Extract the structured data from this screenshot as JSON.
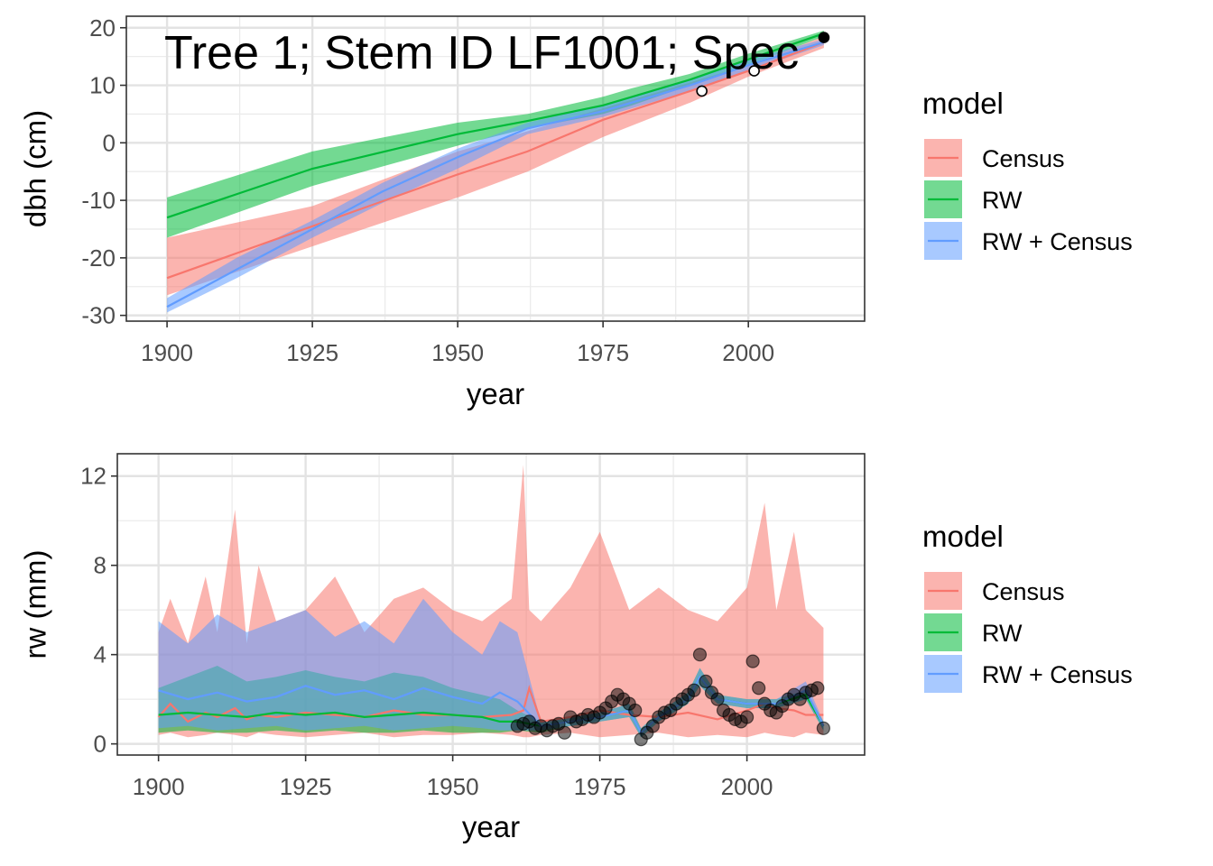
{
  "chart_data": [
    {
      "type": "line",
      "title": "Tree 1; Stem ID LF1001; Spec",
      "xlabel": "year",
      "ylabel": "dbh (cm)",
      "xlim": [
        1893,
        2020
      ],
      "ylim": [
        -31,
        22
      ],
      "xticks": [
        1900,
        1925,
        1950,
        1975,
        2000
      ],
      "yticks": [
        -30,
        -20,
        -10,
        0,
        10,
        20
      ],
      "grid": true,
      "legend": {
        "title": "model",
        "position": "right",
        "entries": [
          "Census",
          "RW",
          "RW + Census"
        ]
      },
      "colors": {
        "Census": "#F8766D",
        "RW": "#00BA38",
        "RW + Census": "#619CFF"
      },
      "series": [
        {
          "name": "Census",
          "x": [
            1900,
            1925,
            1950,
            1962,
            1975,
            1990,
            2000,
            2013
          ],
          "y": [
            -23.5,
            -14.5,
            -5.5,
            -1.5,
            4,
            9,
            12.5,
            17.5
          ],
          "lower": [
            -26.5,
            -18,
            -9.5,
            -5,
            1,
            7,
            11.5,
            16.5
          ],
          "upper": [
            -16.5,
            -11,
            -1.5,
            2,
            6,
            10.5,
            13.5,
            18.5
          ]
        },
        {
          "name": "RW",
          "x": [
            1900,
            1925,
            1950,
            1962,
            1975,
            1980,
            1990,
            2000,
            2013
          ],
          "y": [
            -13,
            -4.5,
            1.5,
            3.8,
            6.5,
            8,
            11,
            14.5,
            19
          ],
          "lower": [
            -16.5,
            -7.5,
            -0.5,
            2.5,
            5,
            6.5,
            10,
            13.5,
            18.5
          ],
          "upper": [
            -9.5,
            -1.5,
            3.5,
            5,
            8,
            9.5,
            12,
            15.5,
            19.5
          ]
        },
        {
          "name": "RW + Census",
          "x": [
            1900,
            1912,
            1925,
            1937,
            1950,
            1962,
            1975,
            1990,
            2000,
            2013
          ],
          "y": [
            -28.5,
            -22,
            -15,
            -8.5,
            -2.5,
            2.5,
            5.5,
            10,
            13.5,
            17.5
          ],
          "lower": [
            -29.5,
            -23.5,
            -16.5,
            -10.5,
            -4.5,
            1.5,
            4.5,
            9,
            12.5,
            17
          ],
          "upper": [
            -27,
            -20,
            -13.5,
            -7,
            -1,
            3.5,
            6.5,
            11,
            14.5,
            18
          ]
        }
      ],
      "census_points": [
        {
          "x": 1992,
          "y": 9,
          "filled": false
        },
        {
          "x": 2001,
          "y": 12.5,
          "filled": false
        },
        {
          "x": 2013,
          "y": 18.3,
          "filled": true
        }
      ]
    },
    {
      "type": "line",
      "xlabel": "year",
      "ylabel": "rw (mm)",
      "xlim": [
        1893,
        2020
      ],
      "ylim": [
        -0.5,
        13
      ],
      "xticks": [
        1900,
        1925,
        1950,
        1975,
        2000
      ],
      "yticks": [
        0,
        4,
        8,
        12
      ],
      "grid": true,
      "legend": {
        "title": "model",
        "position": "right",
        "entries": [
          "Census",
          "RW",
          "RW + Census"
        ]
      },
      "colors": {
        "Census": "#F8766D",
        "RW": "#00BA38",
        "RW + Census": "#619CFF"
      },
      "series": [
        {
          "name": "Census",
          "x": [
            1900,
            1902,
            1905,
            1908,
            1910,
            1913,
            1915,
            1917,
            1920,
            1925,
            1930,
            1935,
            1940,
            1945,
            1950,
            1955,
            1960,
            1962,
            1963,
            1965,
            1970,
            1975,
            1980,
            1985,
            1990,
            1995,
            2000,
            2003,
            2005,
            2008,
            2010,
            2013
          ],
          "y": [
            1.2,
            1.8,
            1.0,
            1.4,
            1.2,
            1.6,
            1.1,
            1.3,
            1.2,
            1.4,
            1.3,
            1.2,
            1.5,
            1.3,
            1.3,
            1.2,
            1.3,
            1.5,
            2.5,
            1.0,
            1.2,
            1.5,
            1.3,
            1.2,
            1.4,
            1.1,
            1.5,
            1.8,
            1.6,
            1.5,
            1.3,
            1.3
          ],
          "lower": [
            0.4,
            0.5,
            0.3,
            0.4,
            0.5,
            0.4,
            0.3,
            0.5,
            0.4,
            0.3,
            0.4,
            0.5,
            0.3,
            0.4,
            0.4,
            0.5,
            0.4,
            0.3,
            0.3,
            0.4,
            0.5,
            0.3,
            0.4,
            0.5,
            0.3,
            0.4,
            0.3,
            0.5,
            0.4,
            0.3,
            0.5,
            0.4
          ],
          "upper": [
            5,
            6.5,
            4.5,
            7.5,
            5,
            10.5,
            4.5,
            8,
            5.5,
            6,
            7.5,
            5,
            6.5,
            7,
            6,
            5.5,
            6.5,
            12.5,
            6,
            5.5,
            7,
            9.5,
            6,
            7,
            6,
            5.5,
            7,
            10.8,
            6,
            9.5,
            6,
            5.2
          ]
        },
        {
          "name": "RW",
          "x": [
            1900,
            1905,
            1910,
            1915,
            1920,
            1925,
            1930,
            1935,
            1940,
            1945,
            1950,
            1955,
            1958,
            1961,
            1965,
            1970,
            1975,
            1980,
            1982,
            1985,
            1990,
            1992,
            1995,
            2000,
            2005,
            2010,
            2013
          ],
          "y": [
            1.3,
            1.4,
            1.3,
            1.2,
            1.4,
            1.3,
            1.4,
            1.2,
            1.3,
            1.4,
            1.3,
            1.2,
            1.0,
            1.0,
            0.8,
            1.0,
            1.2,
            1.5,
            0.5,
            1.2,
            2.0,
            3.0,
            2.0,
            1.8,
            1.8,
            2.2,
            0.8
          ],
          "lower": [
            0.5,
            0.6,
            0.5,
            0.5,
            0.6,
            0.5,
            0.6,
            0.5,
            0.5,
            0.6,
            0.5,
            0.5,
            0.5,
            0.6,
            0.5,
            0.8,
            1.0,
            1.2,
            0.3,
            1.0,
            1.8,
            2.6,
            1.8,
            1.6,
            1.6,
            2.0,
            0.6
          ],
          "upper": [
            2.5,
            3.0,
            3.5,
            2.8,
            3.0,
            3.3,
            3.0,
            2.8,
            3.2,
            3.0,
            2.5,
            2.2,
            2.0,
            1.5,
            1.0,
            1.2,
            1.4,
            1.8,
            0.7,
            1.4,
            2.3,
            3.4,
            2.2,
            2.0,
            2.0,
            2.4,
            1.0
          ]
        },
        {
          "name": "RW + Census",
          "x": [
            1900,
            1905,
            1910,
            1915,
            1920,
            1925,
            1930,
            1935,
            1940,
            1945,
            1950,
            1955,
            1958,
            1961,
            1965,
            1970,
            1975,
            1980,
            1982,
            1985,
            1990,
            1992,
            1995,
            2000,
            2005,
            2010,
            2013
          ],
          "y": [
            2.4,
            2.0,
            2.3,
            1.9,
            2.1,
            2.6,
            2.2,
            2.4,
            2.0,
            2.5,
            2.1,
            1.8,
            2.3,
            1.9,
            0.8,
            1.0,
            1.2,
            1.5,
            0.5,
            1.2,
            2.0,
            3.0,
            2.0,
            1.8,
            1.8,
            2.4,
            0.8
          ],
          "lower": [
            0.7,
            0.8,
            0.6,
            0.7,
            0.8,
            0.6,
            0.7,
            0.8,
            0.6,
            0.7,
            0.8,
            0.7,
            0.6,
            0.6,
            0.6,
            0.8,
            1.0,
            1.2,
            0.3,
            1.0,
            1.8,
            2.6,
            1.8,
            1.6,
            1.6,
            2.0,
            0.6
          ],
          "upper": [
            5.5,
            4.5,
            5.8,
            5.0,
            5.5,
            6.0,
            4.8,
            5.5,
            4.5,
            6.5,
            5.0,
            4.0,
            5.5,
            5.0,
            1.0,
            1.2,
            1.4,
            1.8,
            0.7,
            1.4,
            2.3,
            3.4,
            2.2,
            2.0,
            2.0,
            2.8,
            1.0
          ]
        }
      ],
      "rw_points": {
        "x": [
          1961,
          1962,
          1963,
          1964,
          1965,
          1966,
          1967,
          1968,
          1969,
          1970,
          1971,
          1972,
          1973,
          1974,
          1975,
          1976,
          1977,
          1978,
          1979,
          1980,
          1981,
          1982,
          1983,
          1984,
          1985,
          1986,
          1987,
          1988,
          1989,
          1990,
          1991,
          1992,
          1993,
          1994,
          1995,
          1996,
          1997,
          1998,
          1999,
          2000,
          2001,
          2002,
          2003,
          2004,
          2005,
          2006,
          2007,
          2008,
          2009,
          2010,
          2011,
          2012,
          2013
        ],
        "y": [
          0.8,
          0.9,
          1.0,
          0.7,
          0.8,
          0.6,
          0.8,
          0.9,
          0.5,
          1.2,
          1.0,
          1.1,
          1.3,
          1.2,
          1.4,
          1.6,
          1.9,
          2.2,
          2.0,
          1.8,
          1.5,
          0.2,
          0.5,
          0.8,
          1.2,
          1.4,
          1.5,
          1.8,
          2.0,
          2.2,
          2.4,
          4.0,
          2.8,
          2.3,
          2.0,
          1.5,
          1.3,
          1.1,
          1.0,
          1.2,
          3.7,
          2.5,
          1.8,
          1.5,
          1.4,
          1.7,
          2.0,
          2.2,
          2.0,
          2.3,
          2.4,
          2.5,
          0.7
        ]
      }
    }
  ]
}
